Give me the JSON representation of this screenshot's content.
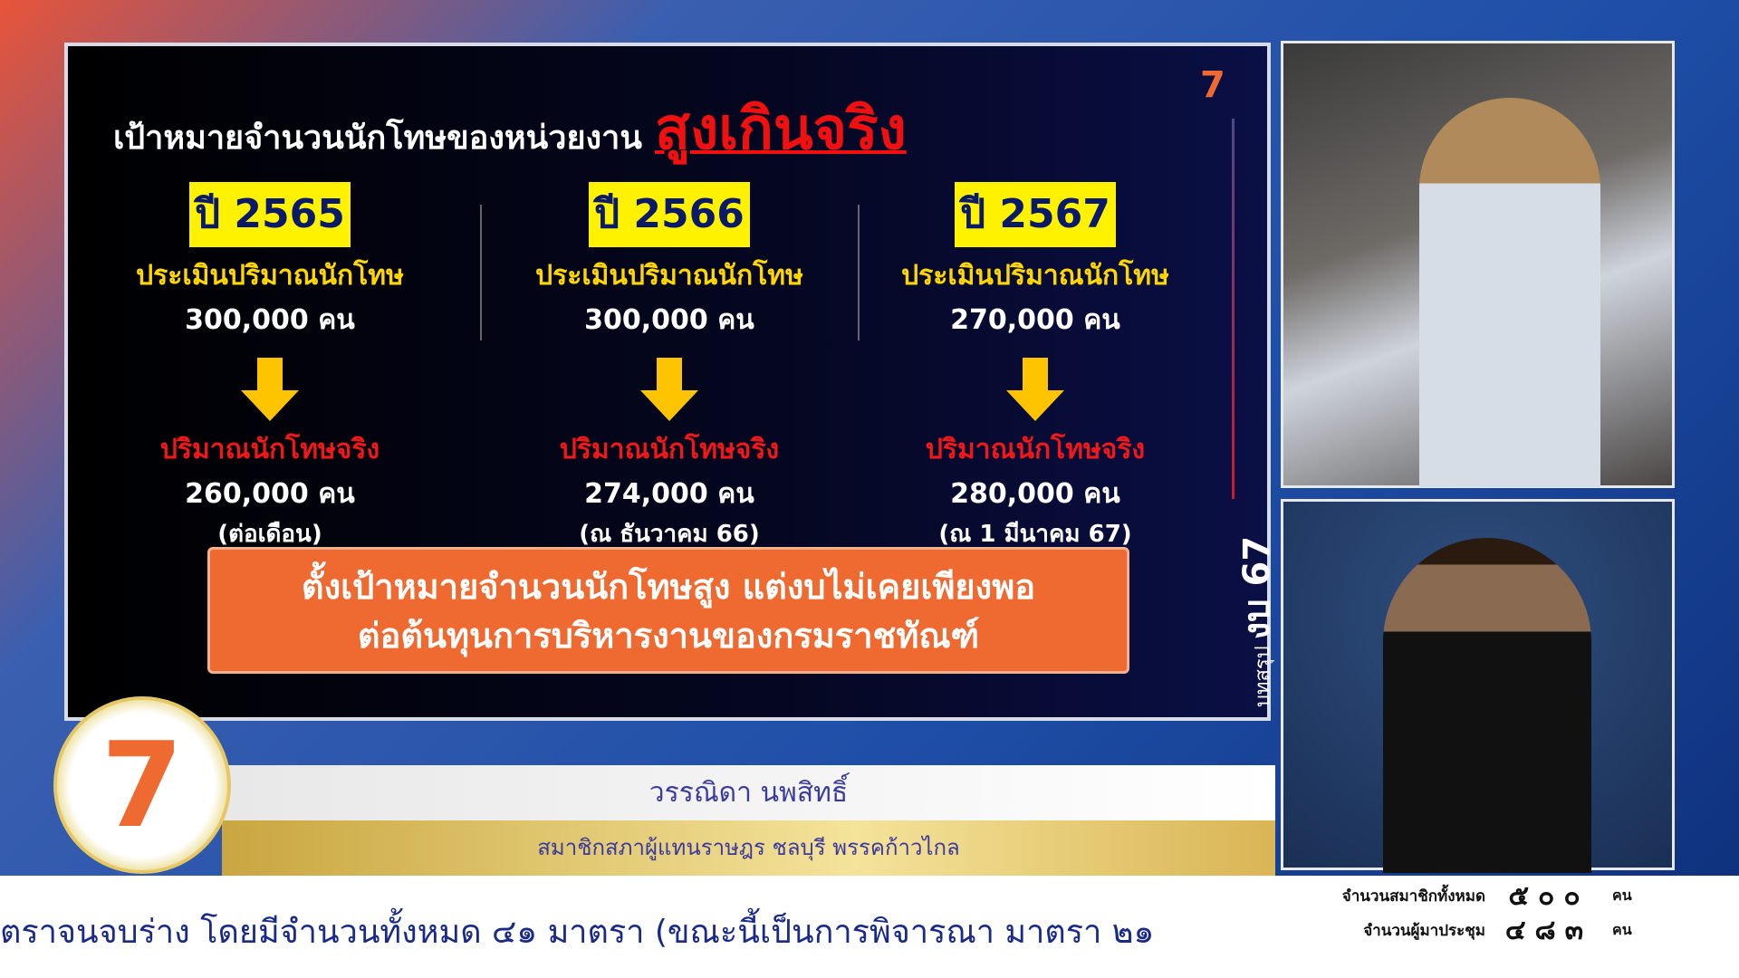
{
  "slide": {
    "title": "เป้าหมายจำนวนนักโทษของหน่วยงาน",
    "title_highlight": "สูงเกินจริง",
    "columns": [
      {
        "year": "ปี 2565",
        "est_label": "ประเมินปริมาณนักโทษ",
        "est_value": "300,000 คน",
        "actual_label": "ปริมาณนักโทษจริง",
        "actual_value": "260,000 คน",
        "note": "(ต่อเดือน)"
      },
      {
        "year": "ปี 2566",
        "est_label": "ประเมินปริมาณนักโทษ",
        "est_value": "300,000 คน",
        "actual_label": "ปริมาณนักโทษจริง",
        "actual_value": "274,000 คน",
        "note": "(ณ ธันวาคม 66)"
      },
      {
        "year": "ปี 2567",
        "est_label": "ประเมินปริมาณนักโทษ",
        "est_value": "270,000 คน",
        "actual_label": "ปริมาณนักโทษจริง",
        "actual_value": "280,000 คน",
        "note": "(ณ 1 มีนาคม 67)"
      }
    ],
    "callout_line1": "ตั้งเป้าหมายจำนวนนักโทษสูง แต่งบไม่เคยเพียงพอ",
    "callout_line2": "ต่อต้นทุนการบริหารงานของกรมราชทัณฑ์",
    "side_label_small": "บทสรุป",
    "side_label_big": "งบ 67",
    "colors": {
      "highlight": "#f01010",
      "year_bg": "#fff200",
      "callout": "#ee6a30",
      "est": "#ffd700"
    }
  },
  "speaker": {
    "name": "วรรณิดา นพสิทธิ์",
    "role": "สมาชิกสภาผู้แทนราษฎร ชลบุรี พรรคก้าวไกล"
  },
  "ticker": {
    "text": "ตราจนจบร่าง โดยมีจำนวนทั้งหมด ๔๑ มาตรา   (ขณะนี้เป็นการพิจารณา มาตรา ๒๑"
  },
  "stats": [
    {
      "label": "จำนวนสมาชิกทั้งหมด",
      "value": "๕๐๐",
      "unit": "คน"
    },
    {
      "label": "จำนวนผู้มาประชุม",
      "value": "๔๘๓",
      "unit": "คน"
    }
  ]
}
